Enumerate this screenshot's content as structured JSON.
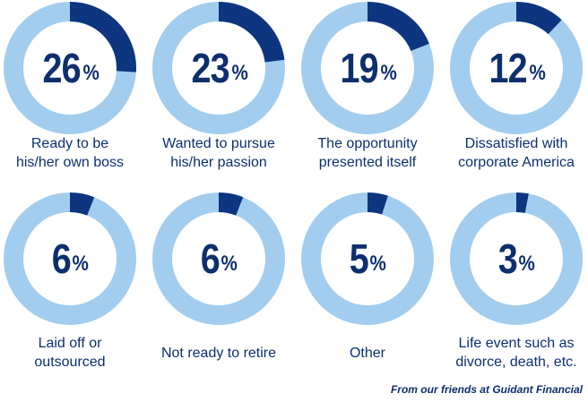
{
  "chart_data": {
    "type": "pie",
    "variant": "donut-grid",
    "colors": {
      "filled": "#0d3580",
      "remainder": "#a3cdee"
    },
    "unit": "%",
    "items": [
      {
        "value": 26,
        "label_lines": [
          "Ready to be",
          "his/her own boss"
        ]
      },
      {
        "value": 23,
        "label_lines": [
          "Wanted to pursue",
          "his/her passion"
        ]
      },
      {
        "value": 19,
        "label_lines": [
          "The opportunity",
          "presented itself"
        ]
      },
      {
        "value": 12,
        "label_lines": [
          "Dissatisfied with",
          "corporate America"
        ]
      },
      {
        "value": 6,
        "label_lines": [
          "Laid off or",
          "outsourced"
        ]
      },
      {
        "value": 6,
        "label_lines": [
          "Not ready to retire"
        ]
      },
      {
        "value": 5,
        "label_lines": [
          "Other"
        ]
      },
      {
        "value": 3,
        "label_lines": [
          "Life event such as",
          "divorce, death, etc."
        ]
      }
    ]
  },
  "footer": "From our friends at Guidant Financial"
}
